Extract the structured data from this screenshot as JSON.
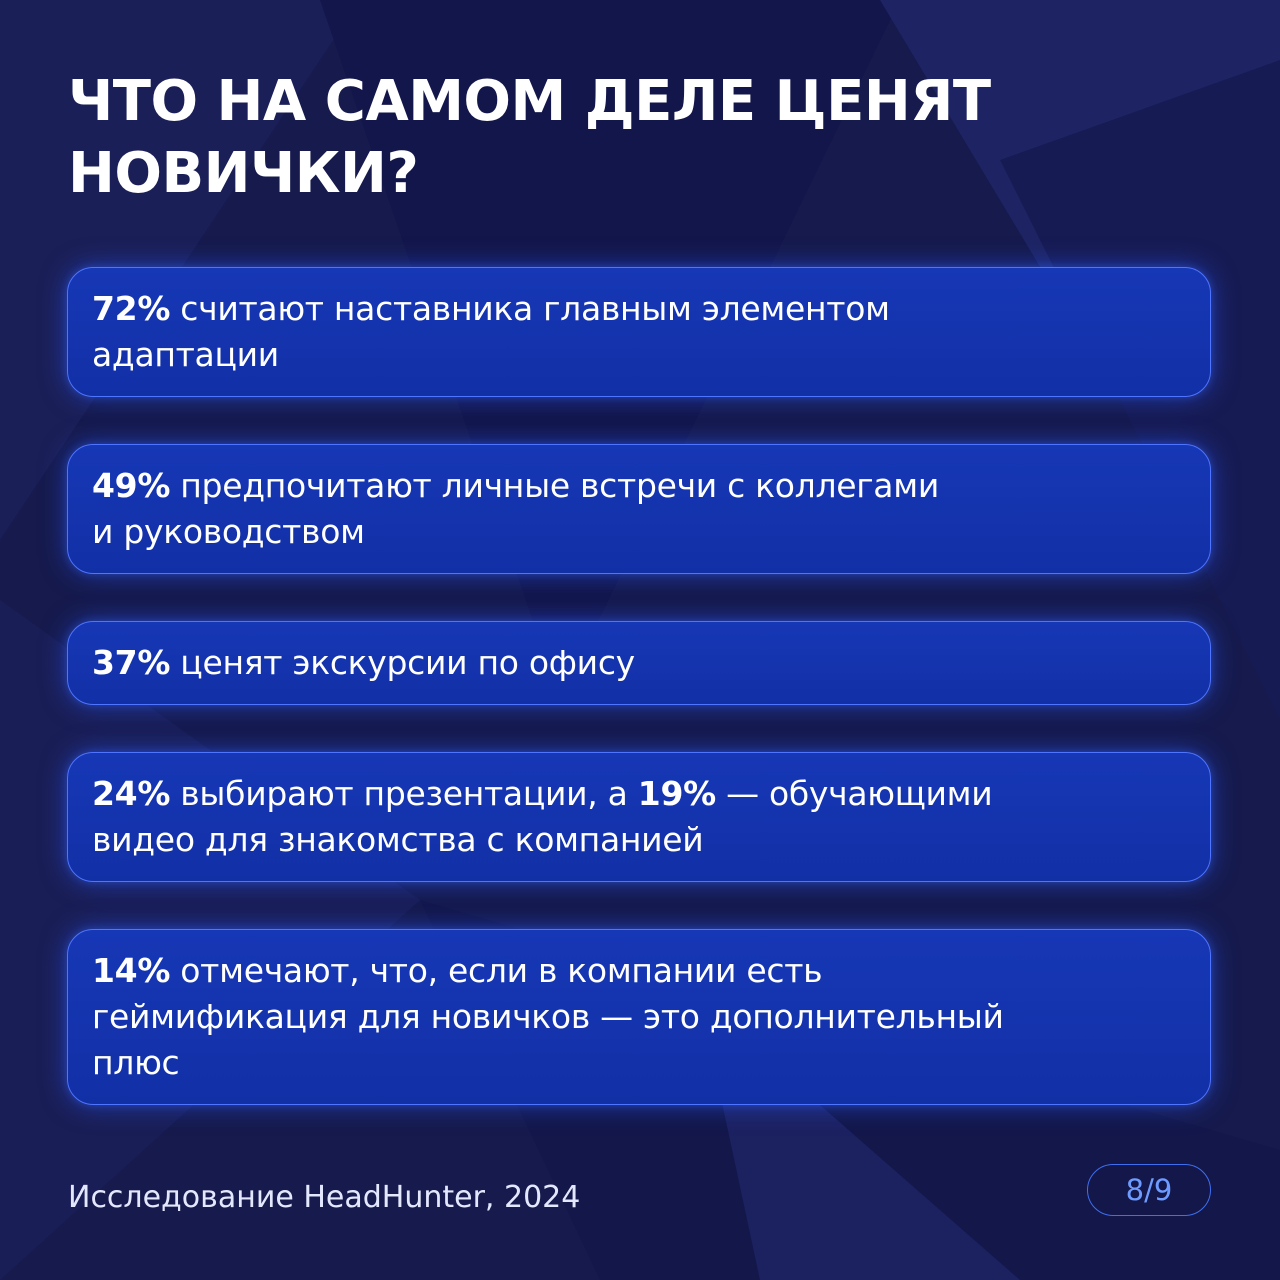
{
  "slide": {
    "title_line1": "ЧТО НА САМОМ ДЕЛЕ ЦЕНЯТ",
    "title_line2": "НОВИЧКИ?"
  },
  "cards": [
    {
      "percent": "72%",
      "line1": " считают наставника главным элементом",
      "line2": "адаптации"
    },
    {
      "percent": "49%",
      "line1": " предпочитают личные встречи с коллегами",
      "line2": "и руководством"
    },
    {
      "percent": "37%",
      "line1": " ценят экскурсии по офису"
    },
    {
      "percent": "24%",
      "text_a": " выбирают презентации, а ",
      "percent2": "19%",
      "text_b": " — обучающими",
      "line2": "видео для знакомства с компанией"
    },
    {
      "percent": "14%",
      "line1": " отмечают, что, если в компании есть",
      "line2": "геймификация для новичков — это дополнительный",
      "line3": "плюс"
    }
  ],
  "footer": {
    "source": "Исследование HeadHunter, 2024",
    "page_indicator": "8/9"
  },
  "colors": {
    "background": "#161a4c",
    "card_fill": "#1637b6",
    "card_border": "#4f74ff",
    "pager_accent": "#6e9bff"
  }
}
